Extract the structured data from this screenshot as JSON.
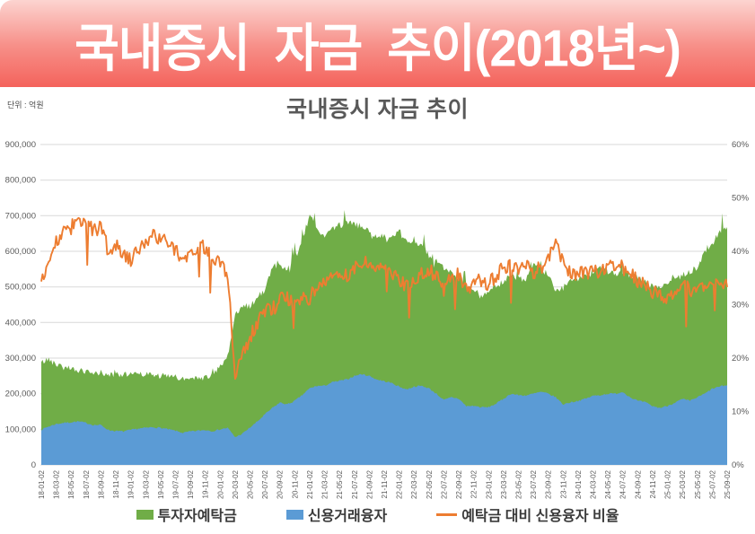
{
  "banner": {
    "title": "국내증시 자금 추이(2018년~)",
    "bg_top": "#fcd4d0",
    "bg_bottom": "#f4635c",
    "text_color": "#ffffff"
  },
  "chart": {
    "title": "국내증시 자금 추이",
    "unit_label": "단위 : 억원",
    "legend": [
      {
        "label": "투자자예탁금",
        "color": "#70ad47",
        "type": "box"
      },
      {
        "label": "신용거래융자",
        "color": "#5b9bd5",
        "type": "box"
      },
      {
        "label": "예탁금 대비 신용융자 비율",
        "color": "#ed7d31",
        "type": "line"
      }
    ]
  },
  "chart_data": {
    "type": "area+line",
    "title": "국내증시 자금 추이",
    "unit": "억원 (left axis), % (right axis)",
    "grid": "horizontal",
    "legend_position": "bottom",
    "y_left": {
      "min": 0,
      "max": 900000,
      "tick_step": 100000,
      "tick_labels": [
        "0",
        "100,000",
        "200,000",
        "300,000",
        "400,000",
        "500,000",
        "600,000",
        "700,000",
        "800,000",
        "900,000"
      ]
    },
    "y_right": {
      "min": 0,
      "max": 60,
      "tick_step": 10,
      "tick_labels": [
        "0%",
        "10%",
        "20%",
        "30%",
        "40%",
        "50%",
        "60%"
      ]
    },
    "x_tick_labels": [
      "18-01-02",
      "18-03-02",
      "18-05-02",
      "18-07-02",
      "18-09-02",
      "18-11-02",
      "19-01-02",
      "19-03-02",
      "19-05-02",
      "19-07-02",
      "19-09-02",
      "19-11-02",
      "20-01-02",
      "20-03-02",
      "20-05-02",
      "20-07-02",
      "20-09-02",
      "20-11-02",
      "21-01-02",
      "21-03-02",
      "21-05-02",
      "21-07-02",
      "21-09-02",
      "21-11-02",
      "22-01-02",
      "22-03-02",
      "22-05-02",
      "22-07-02",
      "22-09-02",
      "22-11-02",
      "23-01-02",
      "23-03-02",
      "23-05-02",
      "23-07-02",
      "23-09-02",
      "23-11-02",
      "24-01-02",
      "24-03-02",
      "24-05-02",
      "24-07-02",
      "24-09-02",
      "24-11-02",
      "25-01-02",
      "25-03-02",
      "25-05-02",
      "25-07-02",
      "25-09-02"
    ],
    "x_range_months": "2018-01 to 2025-09 (daily data, values below are monthly estimates read from chart)",
    "series": [
      {
        "name": "투자자예탁금",
        "axis": "left",
        "style": "area",
        "color": "#70ad47",
        "noise_hint": 9000,
        "monthly_values": [
          285000,
          295000,
          280000,
          272000,
          270000,
          265000,
          258000,
          252000,
          258000,
          250000,
          252000,
          248000,
          255000,
          258000,
          252000,
          250000,
          248000,
          246000,
          244000,
          240000,
          242000,
          238000,
          244000,
          252000,
          272000,
          300000,
          420000,
          440000,
          445000,
          465000,
          490000,
          555000,
          560000,
          548000,
          585000,
          630000,
          700000,
          655000,
          645000,
          660000,
          670000,
          680000,
          672000,
          668000,
          652000,
          640000,
          642000,
          632000,
          655000,
          625000,
          632000,
          612000,
          592000,
          572000,
          552000,
          542000,
          522000,
          500000,
          492000,
          472000,
          482000,
          500000,
          512000,
          530000,
          522000,
          520000,
          560000,
          550000,
          532000,
          488000,
          495000,
          520000,
          522000,
          532000,
          542000,
          552000,
          542000,
          532000,
          542000,
          532000,
          522000,
          512000,
          502000,
          500000,
          512000,
          520000,
          530000,
          540000,
          552000,
          600000,
          622000,
          650000,
          668000
        ]
      },
      {
        "name": "신용거래융자",
        "axis": "left",
        "style": "area",
        "color": "#5b9bd5",
        "noise_hint": 2200,
        "monthly_values": [
          99000,
          108000,
          115000,
          118000,
          120000,
          122000,
          118000,
          112000,
          112000,
          98000,
          95000,
          94000,
          98000,
          102000,
          104000,
          106000,
          104000,
          100000,
          96000,
          90000,
          94000,
          96000,
          98000,
          95000,
          100000,
          104000,
          78000,
          88000,
          105000,
          122000,
          142000,
          160000,
          175000,
          170000,
          180000,
          196000,
          215000,
          222000,
          222000,
          232000,
          236000,
          240000,
          250000,
          255000,
          250000,
          240000,
          235000,
          230000,
          220000,
          212000,
          220000,
          222000,
          215000,
          200000,
          182000,
          190000,
          186000,
          165000,
          166000,
          162000,
          162000,
          172000,
          186000,
          200000,
          196000,
          195000,
          200000,
          205000,
          200000,
          190000,
          170000,
          176000,
          180000,
          186000,
          194000,
          196000,
          200000,
          200000,
          205000,
          190000,
          180000,
          176000,
          165000,
          160000,
          166000,
          175000,
          185000,
          180000,
          190000,
          200000,
          214000,
          220000,
          224000
        ]
      },
      {
        "name": "예탁금 대비 신용융자 비율",
        "axis": "right",
        "style": "line",
        "color": "#ed7d31",
        "noise_hint": 1.4,
        "monthly_values": [
          35.0,
          38.5,
          41.5,
          43.5,
          44.5,
          45.5,
          45.0,
          44.0,
          44.5,
          40.0,
          41.0,
          39.0,
          38.5,
          40.5,
          42.0,
          43.0,
          42.5,
          41.5,
          40.5,
          38.0,
          40.0,
          41.0,
          40.5,
          38.5,
          37.5,
          36.0,
          16.0,
          20.5,
          24.0,
          26.5,
          29.0,
          29.0,
          31.0,
          31.0,
          31.0,
          31.0,
          31.0,
          34.0,
          34.5,
          35.0,
          35.0,
          35.5,
          37.0,
          38.0,
          38.0,
          37.5,
          36.5,
          36.5,
          34.0,
          34.0,
          35.0,
          36.0,
          36.5,
          35.0,
          33.0,
          35.0,
          35.5,
          33.0,
          34.0,
          34.5,
          34.0,
          35.5,
          37.0,
          37.5,
          37.0,
          37.5,
          36.0,
          37.0,
          38.5,
          41.0,
          38.0,
          36.0,
          36.0,
          36.0,
          36.5,
          36.0,
          37.0,
          37.5,
          37.0,
          36.0,
          34.5,
          34.0,
          32.5,
          31.5,
          30.5,
          32.5,
          34.0,
          32.5,
          33.5,
          33.0,
          34.0,
          33.5,
          33.3
        ]
      }
    ],
    "colors": {
      "grid": "#d9d9d9",
      "axis_text": "#595959"
    }
  }
}
